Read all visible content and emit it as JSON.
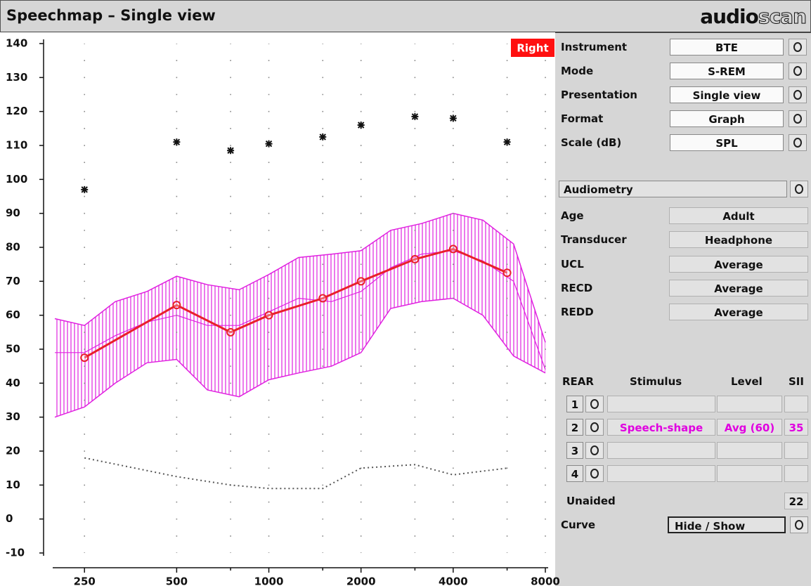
{
  "header": {
    "title": "Speechmap – Single view",
    "logo_parts": [
      "audio",
      "scan"
    ]
  },
  "chart_data": {
    "type": "line",
    "badge": "Right",
    "badge_color": "#ff1010",
    "log_x": true,
    "xlim": [
      200,
      8000
    ],
    "xticks": [
      250,
      500,
      1000,
      2000,
      4000,
      8000
    ],
    "xminor_ticks": [
      750,
      1500,
      3000,
      6000
    ],
    "ylim": [
      -10,
      140
    ],
    "yticks": [
      -10,
      0,
      10,
      20,
      30,
      40,
      50,
      60,
      70,
      80,
      90,
      100,
      110,
      120,
      130,
      140
    ],
    "grid": true,
    "band": {
      "color": "#e020e0",
      "x": [
        200,
        250,
        315,
        400,
        500,
        630,
        800,
        1000,
        1250,
        1600,
        2000,
        2500,
        3150,
        4000,
        5000,
        6300,
        8000
      ],
      "upper": [
        59,
        57,
        64,
        67,
        71.5,
        69,
        67.5,
        72,
        77,
        78,
        79,
        85,
        87,
        90,
        88,
        81,
        52
      ],
      "center": [
        49,
        49,
        54,
        58,
        60,
        57,
        57,
        61,
        65,
        64,
        67,
        74,
        78,
        79,
        76,
        70,
        44
      ],
      "lower": [
        30,
        33,
        40,
        46,
        47,
        38,
        36,
        41,
        43,
        45,
        49,
        62,
        64,
        65,
        60,
        48,
        43
      ]
    },
    "series": [
      {
        "style": "line-markers",
        "color": "#e8202a",
        "x": [
          250,
          500,
          750,
          1000,
          1500,
          2000,
          3000,
          4000,
          6000
        ],
        "values": [
          47.5,
          63,
          55,
          60,
          65,
          70,
          76.5,
          79.5,
          72.5
        ]
      },
      {
        "style": "markers",
        "color": "#111111",
        "x": [
          250,
          500,
          750,
          1000,
          1500,
          2000,
          3000,
          4000,
          6000
        ],
        "values": [
          97,
          111,
          108.5,
          110.5,
          112.5,
          116,
          118.5,
          118,
          111
        ]
      },
      {
        "style": "dotted",
        "color": "#555555",
        "x": [
          250,
          500,
          750,
          1000,
          1500,
          2000,
          3000,
          4000,
          6000
        ],
        "values": [
          18,
          12.5,
          10,
          9,
          9,
          15,
          16,
          13,
          15
        ]
      }
    ]
  },
  "settings": [
    {
      "label": "Instrument",
      "value": "BTE"
    },
    {
      "label": "Mode",
      "value": "S-REM"
    },
    {
      "label": "Presentation",
      "value": "Single view"
    },
    {
      "label": "Format",
      "value": "Graph"
    },
    {
      "label": "Scale (dB)",
      "value": "SPL"
    }
  ],
  "audiometry": {
    "button": "Audiometry",
    "rows": [
      {
        "label": "Age",
        "value": "Adult"
      },
      {
        "label": "Transducer",
        "value": "Headphone"
      },
      {
        "label": "UCL",
        "value": "Average"
      },
      {
        "label": "RECD",
        "value": "Average"
      },
      {
        "label": "REDD",
        "value": "Average"
      }
    ]
  },
  "rear": {
    "headers": [
      "REAR",
      "Stimulus",
      "Level",
      "SII"
    ],
    "rows": [
      {
        "number": "1"
      },
      {
        "number": "2",
        "stimulus": "Speech-shape",
        "level": "Avg (60)",
        "sii": "35"
      },
      {
        "number": "3"
      },
      {
        "number": "4"
      }
    ]
  },
  "unaided": {
    "label": "Unaided",
    "value": "22"
  },
  "curve": {
    "label": "Curve",
    "button": "Hide / Show"
  }
}
